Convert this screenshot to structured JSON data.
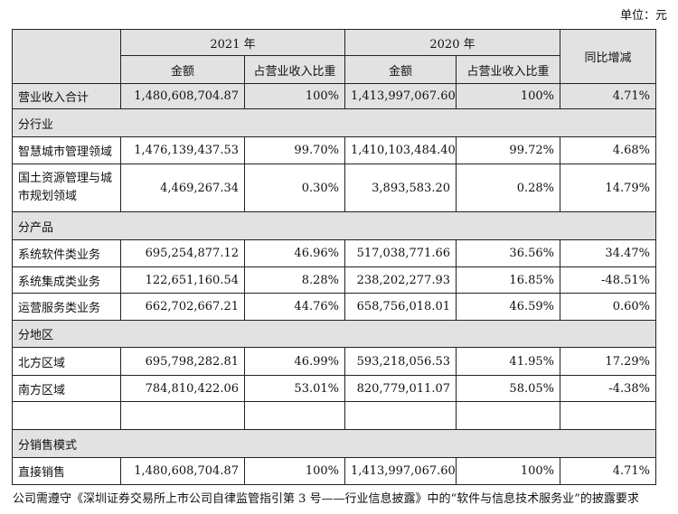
{
  "unit_label": "单位：元",
  "header": {
    "year_2021": "2021 年",
    "year_2020": "2020 年",
    "yoy": "同比增减",
    "amount_2021": "金额",
    "ratio_2021": "占营业收入比重",
    "amount_2020": "金额",
    "ratio_2020": "占营业收入比重"
  },
  "total": {
    "label": "营业收入合计",
    "amt_2021": "1,480,608,704.87",
    "ratio_2021": "100%",
    "amt_2020": "1,413,997,067.60",
    "ratio_2020": "100%",
    "yoy": "4.71%"
  },
  "sections": {
    "industry": "分行业",
    "product": "分产品",
    "region": "分地区",
    "sales_mode": "分销售模式"
  },
  "rows": {
    "smart_city": {
      "label": "智慧城市管理领域",
      "amt_2021": "1,476,139,437.53",
      "ratio_2021": "99.70%",
      "amt_2020": "1,410,103,484.40",
      "ratio_2020": "99.72%",
      "yoy": "4.68%"
    },
    "land_resources": {
      "label": "国土资源管理与城市规划领域",
      "amt_2021": "4,469,267.34",
      "ratio_2021": "0.30%",
      "amt_2020": "3,893,583.20",
      "ratio_2020": "0.28%",
      "yoy": "14.79%"
    },
    "software": {
      "label": "系统软件类业务",
      "amt_2021": "695,254,877.12",
      "ratio_2021": "46.96%",
      "amt_2020": "517,038,771.66",
      "ratio_2020": "36.56%",
      "yoy": "34.47%"
    },
    "integration": {
      "label": "系统集成类业务",
      "amt_2021": "122,651,160.54",
      "ratio_2021": "8.28%",
      "amt_2020": "238,202,277.93",
      "ratio_2020": "16.85%",
      "yoy": "-48.51%"
    },
    "operations": {
      "label": "运营服务类业务",
      "amt_2021": "662,702,667.21",
      "ratio_2021": "44.76%",
      "amt_2020": "658,756,018.01",
      "ratio_2020": "46.59%",
      "yoy": "0.60%"
    },
    "north": {
      "label": "北方区域",
      "amt_2021": "695,798,282.81",
      "ratio_2021": "46.99%",
      "amt_2020": "593,218,056.53",
      "ratio_2020": "41.95%",
      "yoy": "17.29%"
    },
    "south": {
      "label": "南方区域",
      "amt_2021": "784,810,422.06",
      "ratio_2021": "53.01%",
      "amt_2020": "820,779,011.07",
      "ratio_2020": "58.05%",
      "yoy": "-4.38%"
    },
    "direct": {
      "label": "直接销售",
      "amt_2021": "1,480,608,704.87",
      "ratio_2021": "100%",
      "amt_2020": "1,413,997,067.60",
      "ratio_2020": "100%",
      "yoy": "4.71%"
    }
  },
  "footer_text": "公司需遵守《深圳证券交易所上市公司自律监管指引第 3 号——行业信息披露》中的“软件与信息技术服务业”的披露要求"
}
